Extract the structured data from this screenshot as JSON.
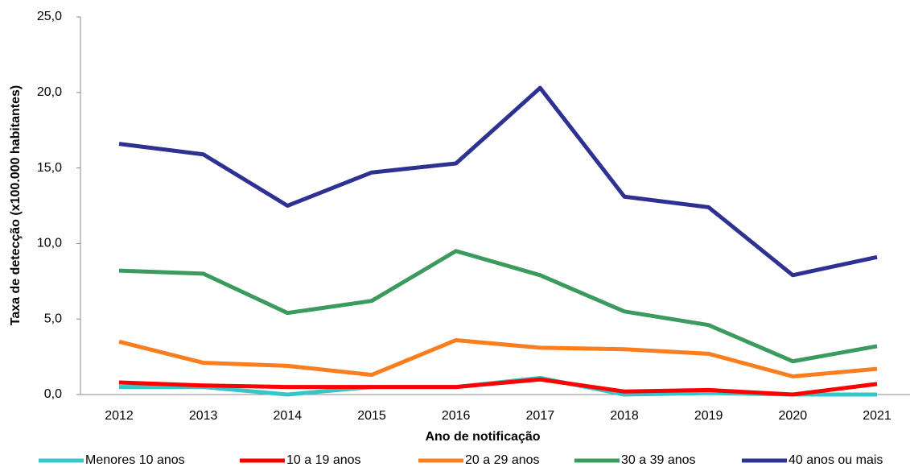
{
  "chart_data": {
    "type": "line",
    "x_label": "Ano de notificação",
    "y_label": "Taxa de detecção (x100.000 habitantes)",
    "categories": [
      "2012",
      "2013",
      "2014",
      "2015",
      "2016",
      "2017",
      "2018",
      "2019",
      "2020",
      "2021"
    ],
    "series": [
      {
        "name": "Menores 10 anos",
        "color": "#36c5c8",
        "values": [
          0.5,
          0.5,
          0.0,
          0.5,
          0.5,
          1.1,
          0.0,
          0.1,
          0.0,
          0.0
        ]
      },
      {
        "name": "10 a 19 anos",
        "color": "#ff0000",
        "values": [
          0.8,
          0.6,
          0.5,
          0.5,
          0.5,
          1.0,
          0.2,
          0.3,
          0.0,
          0.7
        ]
      },
      {
        "name": "20 a 29 anos",
        "color": "#fa7d1e",
        "values": [
          3.5,
          2.1,
          1.9,
          1.3,
          3.6,
          3.1,
          3.0,
          2.7,
          1.2,
          1.7
        ]
      },
      {
        "name": "30 a 39 anos",
        "color": "#3b9a5e",
        "values": [
          8.2,
          8.0,
          5.4,
          6.2,
          9.5,
          7.9,
          5.5,
          4.6,
          2.2,
          3.2
        ]
      },
      {
        "name": "40 anos ou mais",
        "color": "#2e3192",
        "values": [
          16.6,
          15.9,
          12.5,
          14.7,
          15.3,
          20.3,
          13.1,
          12.4,
          7.9,
          9.1
        ]
      }
    ],
    "ylim": [
      0,
      25
    ],
    "yticks": [
      {
        "value": 0,
        "label": "0,0"
      },
      {
        "value": 5,
        "label": "5,0"
      },
      {
        "value": 10,
        "label": "10,0"
      },
      {
        "value": 15,
        "label": "15,0"
      },
      {
        "value": 20,
        "label": "20,0"
      },
      {
        "value": 25,
        "label": "25,0"
      }
    ],
    "legend": "bottom"
  }
}
